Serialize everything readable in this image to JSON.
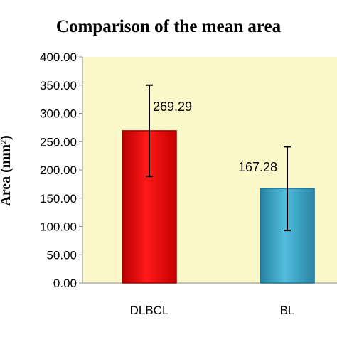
{
  "chart_data": {
    "type": "bar",
    "title": "Comparison of the mean area",
    "ylabel": "Area (mm²)",
    "xlabel": "",
    "categories": [
      "DLBCL",
      "BL"
    ],
    "values": [
      269.29,
      167.28
    ],
    "value_labels": [
      "269.29",
      "167.28"
    ],
    "error_low": [
      188.5,
      93.0
    ],
    "error_high": [
      350.0,
      241.0
    ],
    "ylim": [
      0,
      400
    ],
    "yticks": [
      "0.00",
      "50.00",
      "100.00",
      "150.00",
      "200.00",
      "250.00",
      "300.00",
      "350.00",
      "400.00"
    ],
    "grid": false,
    "legend": "none",
    "colors": {
      "plot_background": "#fbf8c9",
      "bars": [
        "#e81010",
        "#3ba5c8"
      ],
      "bar_edges": [
        "#9a0000",
        "#1d6f8e"
      ]
    }
  }
}
